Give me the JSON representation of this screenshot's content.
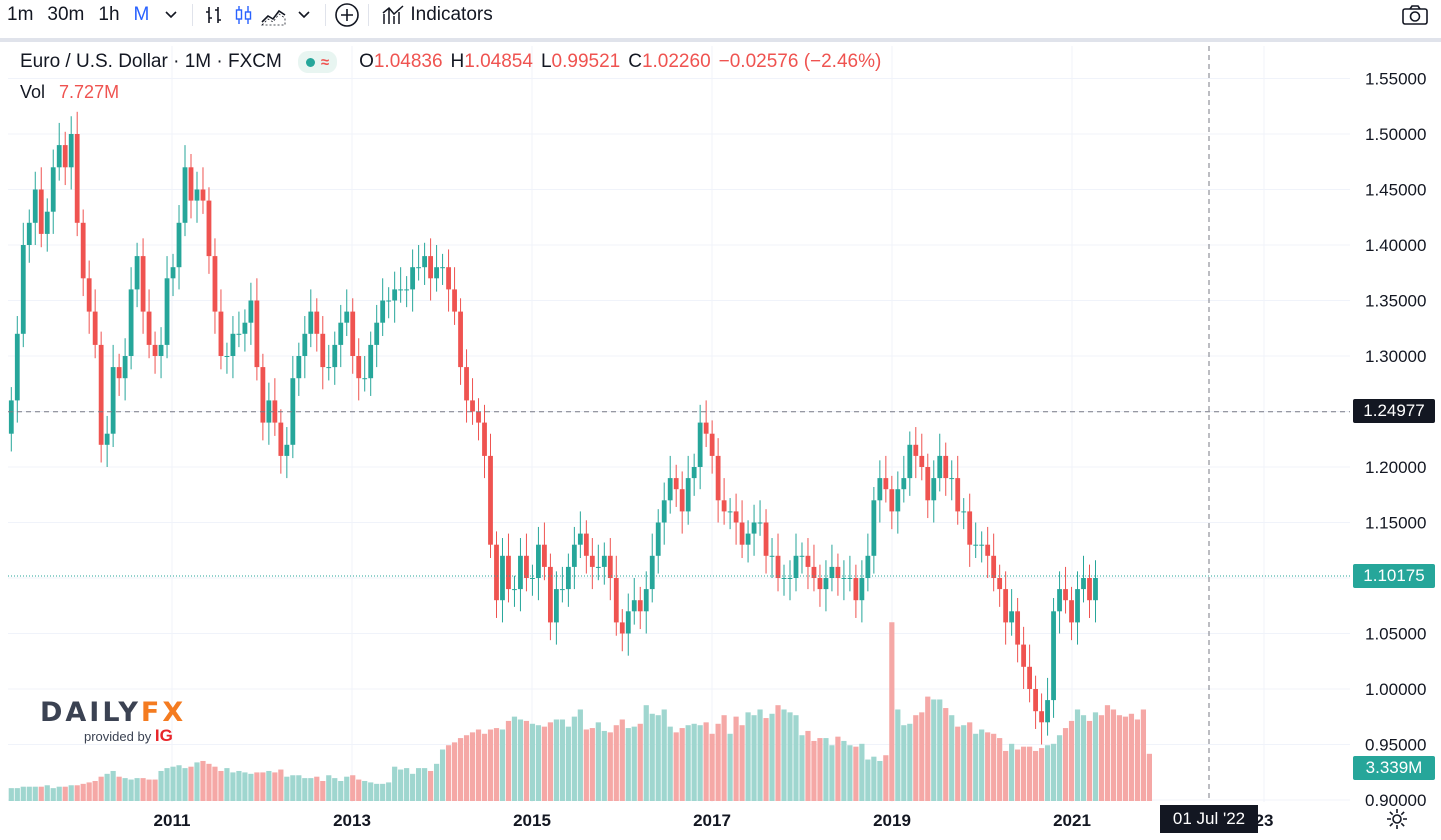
{
  "toolbar": {
    "intervals": [
      "1m",
      "30m",
      "1h",
      "M"
    ],
    "active_interval": "M",
    "indicators_label": "Indicators",
    "icons": [
      "chevron-down-icon",
      "bar-chart-icon",
      "candles-icon",
      "area-chart-icon",
      "chevron-down-icon",
      "add-compare-icon",
      "indicators-icon",
      "camera-icon"
    ]
  },
  "legend": {
    "title": "Euro / U.S. Dollar · 1M · FXCM",
    "o_label": "O",
    "o": "1.04836",
    "h_label": "H",
    "h": "1.04854",
    "l_label": "L",
    "l": "0.99521",
    "c_label": "C",
    "c": "1.02260",
    "change": "−0.02576 (−2.46%)",
    "vol_label": "Vol",
    "vol": "7.727M"
  },
  "logo": {
    "brand_a": "DAILY",
    "brand_b": "FX",
    "provided_by": "provided by",
    "ig": "IG"
  },
  "price_tags": {
    "crosshair": "1.24977",
    "last": "1.10175",
    "volume": "3.339M"
  },
  "date_tag": "01 Jul '22",
  "colors": {
    "up": "#26a69a",
    "down": "#ef5350",
    "up_vol": "#9fd6cf",
    "down_vol": "#f5a8a6",
    "tag_dark": "#131722",
    "tag_green": "#26a69a"
  },
  "chart_data": {
    "type": "candlestick",
    "title": "Euro / U.S. Dollar · 1M · FXCM",
    "timeframe": "1M",
    "y_axis": {
      "ticks": [
        "1.55000",
        "1.50000",
        "1.45000",
        "1.40000",
        "1.35000",
        "1.30000",
        "1.25000",
        "1.20000",
        "1.15000",
        "1.10000",
        "1.05000",
        "1.00000",
        "0.95000",
        "0.90000"
      ],
      "range": [
        0.895,
        1.565
      ]
    },
    "x_axis": {
      "ticks": [
        "2011",
        "2013",
        "2015",
        "2017",
        "2019",
        "2021",
        "23"
      ],
      "start": "2009-07",
      "end": "2023-06"
    },
    "crosshair": {
      "price": 1.24977,
      "date": "01 Jul '22"
    },
    "last_price": 1.10175,
    "last_volume": "3.339M",
    "closes": [
      1.26,
      1.32,
      1.4,
      1.42,
      1.45,
      1.41,
      1.43,
      1.47,
      1.49,
      1.47,
      1.5,
      1.42,
      1.37,
      1.34,
      1.31,
      1.22,
      1.23,
      1.29,
      1.28,
      1.3,
      1.36,
      1.39,
      1.34,
      1.31,
      1.3,
      1.31,
      1.37,
      1.38,
      1.42,
      1.47,
      1.44,
      1.45,
      1.44,
      1.39,
      1.34,
      1.3,
      1.3,
      1.32,
      1.32,
      1.33,
      1.35,
      1.29,
      1.24,
      1.26,
      1.24,
      1.21,
      1.22,
      1.28,
      1.3,
      1.32,
      1.34,
      1.32,
      1.29,
      1.29,
      1.31,
      1.33,
      1.34,
      1.3,
      1.28,
      1.28,
      1.31,
      1.33,
      1.35,
      1.35,
      1.36,
      1.36,
      1.36,
      1.38,
      1.38,
      1.39,
      1.37,
      1.38,
      1.38,
      1.36,
      1.34,
      1.29,
      1.26,
      1.25,
      1.24,
      1.21,
      1.13,
      1.08,
      1.12,
      1.09,
      1.09,
      1.12,
      1.1,
      1.1,
      1.13,
      1.11,
      1.06,
      1.09,
      1.09,
      1.11,
      1.13,
      1.14,
      1.12,
      1.11,
      1.11,
      1.12,
      1.1,
      1.06,
      1.05,
      1.07,
      1.08,
      1.07,
      1.09,
      1.12,
      1.15,
      1.17,
      1.19,
      1.18,
      1.16,
      1.19,
      1.2,
      1.24,
      1.23,
      1.21,
      1.17,
      1.16,
      1.16,
      1.15,
      1.13,
      1.14,
      1.15,
      1.15,
      1.12,
      1.12,
      1.1,
      1.1,
      1.1,
      1.12,
      1.12,
      1.11,
      1.1,
      1.09,
      1.1,
      1.11,
      1.1,
      1.1,
      1.1,
      1.08,
      1.1,
      1.12,
      1.17,
      1.19,
      1.18,
      1.16,
      1.18,
      1.19,
      1.22,
      1.21,
      1.2,
      1.17,
      1.19,
      1.21,
      1.19,
      1.19,
      1.16,
      1.16,
      1.13,
      1.13,
      1.13,
      1.12,
      1.1,
      1.09,
      1.06,
      1.07,
      1.04,
      1.02,
      1.0,
      0.98,
      0.97,
      0.99,
      1.07,
      1.09,
      1.08,
      1.06,
      1.09,
      1.1,
      1.08,
      1.1
    ],
    "volume_scale_max": 7.727,
    "volumes": [
      0.9,
      0.9,
      1.0,
      1.0,
      1.0,
      1.0,
      1.1,
      0.9,
      1.0,
      1.0,
      1.1,
      1.1,
      1.2,
      1.3,
      1.4,
      1.7,
      1.9,
      2.1,
      1.7,
      1.6,
      1.5,
      1.6,
      1.6,
      1.5,
      1.5,
      2.1,
      2.3,
      2.4,
      2.5,
      2.3,
      2.4,
      2.7,
      2.8,
      2.6,
      2.4,
      2.1,
      2.3,
      2.0,
      2.1,
      2.0,
      1.9,
      2.0,
      2.0,
      2.1,
      2.0,
      2.2,
      1.7,
      1.8,
      1.8,
      1.6,
      1.6,
      1.7,
      1.4,
      1.8,
      1.6,
      1.4,
      1.7,
      1.8,
      1.5,
      1.4,
      1.3,
      1.2,
      1.2,
      1.3,
      2.4,
      2.2,
      2.3,
      1.9,
      2.3,
      2.3,
      2.1,
      2.6,
      3.6,
      3.9,
      4.1,
      4.4,
      4.6,
      4.8,
      5.0,
      4.7,
      5.0,
      5.1,
      5.0,
      5.6,
      5.9,
      5.7,
      5.6,
      5.4,
      5.3,
      5.2,
      5.5,
      5.7,
      5.7,
      5.2,
      5.9,
      6.4,
      5.0,
      5.1,
      5.5,
      4.9,
      4.8,
      5.3,
      5.7,
      5.1,
      5.2,
      5.4,
      6.7,
      6.1,
      6.0,
      6.4,
      5.2,
      4.8,
      5.1,
      5.3,
      5.4,
      5.3,
      5.5,
      4.7,
      5.4,
      6.0,
      4.7,
      5.9,
      5.3,
      6.2,
      6.0,
      6.4,
      5.8,
      6.1,
      6.7,
      6.4,
      6.2,
      6.0,
      4.6,
      4.9,
      4.2,
      4.4,
      4.4,
      3.9,
      4.5,
      4.2,
      3.9,
      3.8,
      4.0,
      2.9,
      3.1,
      2.8,
      3.2,
      12.5,
      6.4,
      5.3,
      5.4,
      6.0,
      6.2,
      7.3,
      7.1,
      7.1,
      6.5,
      6.0,
      5.2,
      5.3,
      5.5,
      4.7,
      5.0,
      4.8,
      4.7,
      4.4,
      3.5,
      4.0,
      3.6,
      3.8,
      3.8,
      3.5,
      3.7,
      3.9,
      4.0,
      4.6,
      5.1,
      5.6,
      6.4,
      6.0,
      5.6,
      6.2,
      6.0,
      6.7,
      6.4,
      6.0,
      5.9,
      6.1,
      5.7,
      6.4,
      3.3
    ]
  }
}
